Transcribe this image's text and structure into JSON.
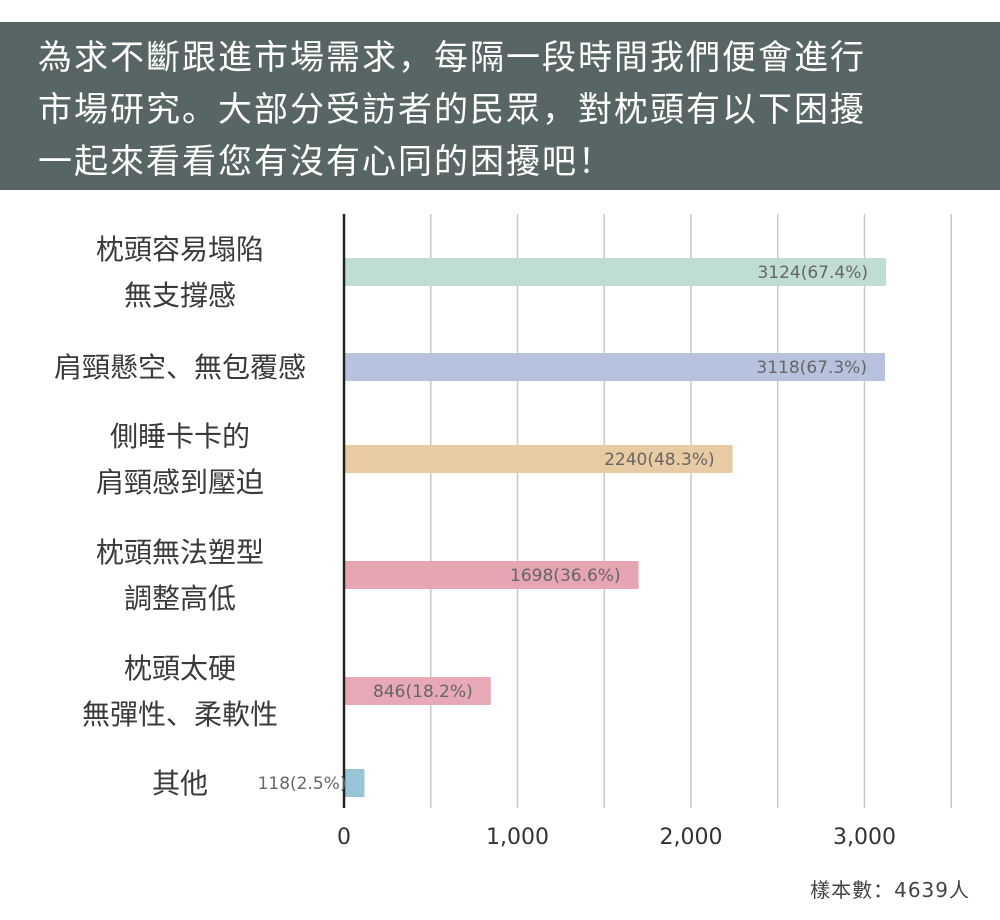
{
  "header": {
    "lines": [
      "為求不斷跟進市場需求，每隔一段時間我們便會進行",
      "市場研究。大部分受訪者的民眾，對枕頭有以下困擾",
      "一起來看看您有沒有心同的困擾吧！"
    ],
    "background": "#576664"
  },
  "chart_data": {
    "type": "bar",
    "orientation": "horizontal",
    "categories": [
      [
        "枕頭容易塌陷",
        "無支撐感"
      ],
      [
        "肩頸懸空、無包覆感"
      ],
      [
        "側睡卡卡的",
        "肩頸感到壓迫"
      ],
      [
        "枕頭無法塑型",
        "調整高低"
      ],
      [
        "枕頭太硬",
        "無彈性、柔軟性"
      ],
      [
        "其他"
      ]
    ],
    "values": [
      3124,
      3118,
      2240,
      1698,
      846,
      118
    ],
    "data_labels": [
      "3124(67.4%)",
      "3118(67.3%)",
      "2240(48.3%)",
      "1698(36.6%)",
      "846(18.2%)",
      "118(2.5%)"
    ],
    "bar_colors": [
      "#c0ddd2",
      "#b7c3de",
      "#e8cba2",
      "#e6a5b3",
      "#e7a9b6",
      "#98c5d6"
    ],
    "xlim": [
      0,
      3500
    ],
    "xticks": [
      0,
      1000,
      2000,
      3000
    ],
    "xtick_labels": [
      "0",
      "1,000",
      "2,000",
      "3,000"
    ],
    "grid": true
  },
  "footer": {
    "sample_note": "樣本數：4639人"
  }
}
